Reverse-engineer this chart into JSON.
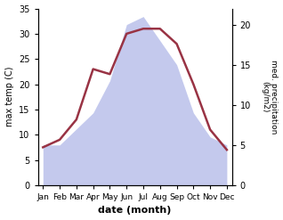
{
  "months": [
    "Jan",
    "Feb",
    "Mar",
    "Apr",
    "May",
    "Jun",
    "Jul",
    "Aug",
    "Sep",
    "Oct",
    "Nov",
    "Dec"
  ],
  "month_x": [
    0,
    1,
    2,
    3,
    4,
    5,
    6,
    7,
    8,
    9,
    10,
    11
  ],
  "temp": [
    7.5,
    9,
    13,
    23,
    22,
    30,
    31,
    31,
    28,
    20,
    11,
    7
  ],
  "precip": [
    5,
    5,
    7,
    9,
    13,
    20,
    21,
    18,
    15,
    9,
    6,
    5
  ],
  "temp_ylim": [
    0,
    35
  ],
  "precip_ylim": [
    0,
    22
  ],
  "temp_yticks": [
    0,
    5,
    10,
    15,
    20,
    25,
    30,
    35
  ],
  "precip_yticks": [
    0,
    5,
    10,
    15,
    20
  ],
  "fill_color": "#b0b8e8",
  "fill_alpha": 0.75,
  "line_color": "#993344",
  "line_width": 1.8,
  "bg_color": "#ffffff",
  "ylabel_left": "max temp (C)",
  "ylabel_right": "med. precipitation\n(kg/m2)",
  "xlabel": "date (month)"
}
